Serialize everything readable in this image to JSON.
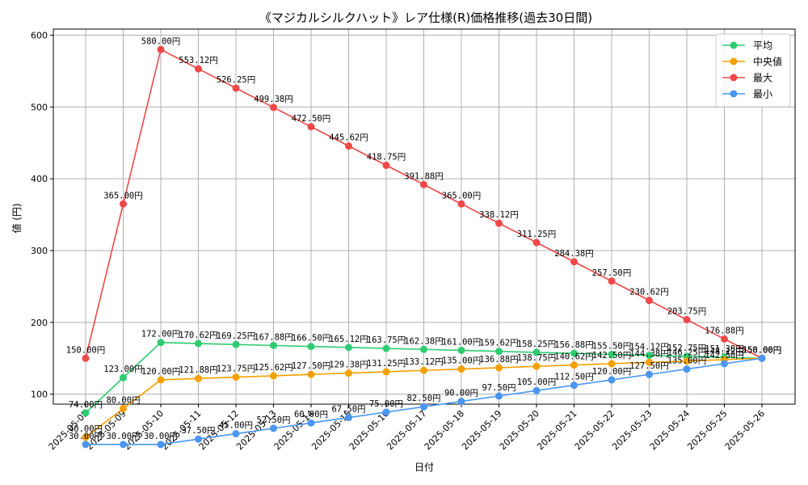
{
  "chart_data": {
    "type": "line",
    "title": "《マジカルシルクハット》レア仕様(R)価格推移(過去30日間)",
    "xlabel": "日付",
    "ylabel": "値 (円)",
    "ylim": [
      0,
      600
    ],
    "yticks": [
      "100",
      "200",
      "300",
      "400",
      "500",
      "600"
    ],
    "grid": true,
    "legend_position": "top-right",
    "categories": [
      "2025-05-08",
      "2025-05-09",
      "2025-05-10",
      "2025-05-11",
      "2025-05-12",
      "2025-05-13",
      "2025-05-14",
      "2025-05-15",
      "2025-05-16",
      "2025-05-17",
      "2025-05-18",
      "2025-05-19",
      "2025-05-20",
      "2025-05-21",
      "2025-05-22",
      "2025-05-23",
      "2025-05-24",
      "2025-05-25",
      "2025-05-26"
    ],
    "series": [
      {
        "name": "平均",
        "color": "#2ecc71",
        "values": [
          74.0,
          123.0,
          172.0,
          170.62,
          169.25,
          167.88,
          166.5,
          165.12,
          163.75,
          162.38,
          161.0,
          159.62,
          158.25,
          156.88,
          155.5,
          154.12,
          152.75,
          151.38,
          150.0
        ],
        "labels": [
          "74.00円",
          "123.00円",
          "172.00円",
          "170.62円",
          "169.25円",
          "167.88円",
          "166.50円",
          "165.12円",
          "163.75円",
          "162.38円",
          "161.00円",
          "159.62円",
          "158.25円",
          "156.88円",
          "155.50円",
          "154.12円",
          "152.75円",
          "151.38円",
          "150.00円"
        ]
      },
      {
        "name": "中央値",
        "color": "#f5a000",
        "values": [
          40.0,
          80.0,
          120.0,
          121.88,
          123.75,
          125.62,
          127.5,
          129.38,
          131.25,
          133.12,
          135.0,
          136.88,
          138.75,
          140.62,
          142.5,
          144.38,
          146.25,
          148.12,
          150.0
        ],
        "labels": [
          "40.00円",
          "80.00円",
          "120.00円",
          "121.88円",
          "123.75円",
          "125.62円",
          "127.50円",
          "129.38円",
          "131.25円",
          "133.12円",
          "135.00円",
          "136.88円",
          "138.75円",
          "140.62円",
          "142.50円",
          "144.38円",
          "146.25円",
          "148.12円",
          "150.00円"
        ]
      },
      {
        "name": "最大",
        "color": "#f04848",
        "values": [
          150.0,
          365.0,
          580.0,
          553.12,
          526.25,
          499.38,
          472.5,
          445.62,
          418.75,
          391.88,
          365.0,
          338.12,
          311.25,
          284.38,
          257.5,
          230.62,
          203.75,
          176.88,
          150.0
        ],
        "labels": [
          "150.00円",
          "365.00円",
          "580.00円",
          "553.12円",
          "526.25円",
          "499.38円",
          "472.50円",
          "445.62円",
          "418.75円",
          "391.88円",
          "365.00円",
          "338.12円",
          "311.25円",
          "284.38円",
          "257.50円",
          "230.62円",
          "203.75円",
          "176.88円",
          "150.00円"
        ]
      },
      {
        "name": "最小",
        "color": "#4a96f0",
        "values": [
          30.0,
          30.0,
          30.0,
          37.5,
          45.0,
          52.5,
          60.0,
          67.5,
          75.0,
          82.5,
          90.0,
          97.5,
          105.0,
          112.5,
          120.0,
          127.5,
          135.0,
          142.5,
          150.0
        ],
        "labels": [
          "30.00円",
          "30.00円",
          "30.00円",
          "37.50円",
          "45.00円",
          "52.50円",
          "60.00円",
          "67.50円",
          "75.00円",
          "82.50円",
          "90.00円",
          "97.50円",
          "105.00円",
          "112.50円",
          "120.00円",
          "127.50円",
          "135.00円",
          "142.50円",
          "150.00円"
        ]
      }
    ]
  }
}
